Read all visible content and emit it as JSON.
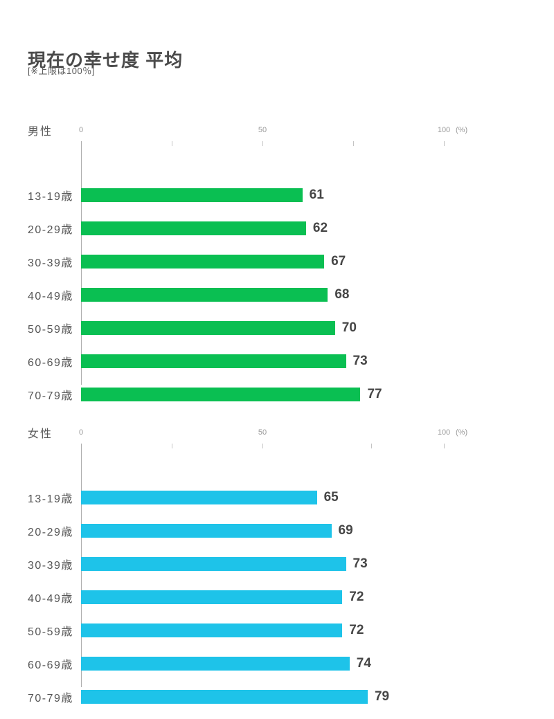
{
  "page": {
    "title": "現在の幸せ度 平均",
    "note": "[※上限は100％]"
  },
  "axis": {
    "labels": [
      "0",
      "50",
      "100"
    ],
    "unit": "(%)"
  },
  "colors": {
    "male_bar": "#0abf52",
    "female_bar": "#1ec3e9",
    "title_text": "#4a4a4a",
    "label_text": "#565656",
    "axis_text": "#9a9a9a",
    "axis_line": "#acacac"
  },
  "chart_data": [
    {
      "type": "bar",
      "orientation": "horizontal",
      "group_label": "男性",
      "categories": [
        "13-19歳",
        "20-29歳",
        "30-39歳",
        "40-49歳",
        "50-59歳",
        "60-69歳",
        "70-79歳"
      ],
      "values": [
        61,
        62,
        67,
        68,
        70,
        73,
        77
      ],
      "unit": "%",
      "xlim": [
        0,
        100
      ],
      "bar_color": "#0abf52",
      "tick_positions_pct": [
        25,
        50,
        75,
        100
      ],
      "grid": false,
      "legend": false
    },
    {
      "type": "bar",
      "orientation": "horizontal",
      "group_label": "女性",
      "categories": [
        "13-19歳",
        "20-29歳",
        "30-39歳",
        "40-49歳",
        "50-59歳",
        "60-69歳",
        "70-79歳"
      ],
      "values": [
        65,
        69,
        73,
        72,
        72,
        74,
        79
      ],
      "unit": "%",
      "xlim": [
        0,
        100
      ],
      "bar_color": "#1ec3e9",
      "tick_positions_pct": [
        25,
        50,
        80,
        100
      ],
      "grid": false,
      "legend": false
    }
  ]
}
